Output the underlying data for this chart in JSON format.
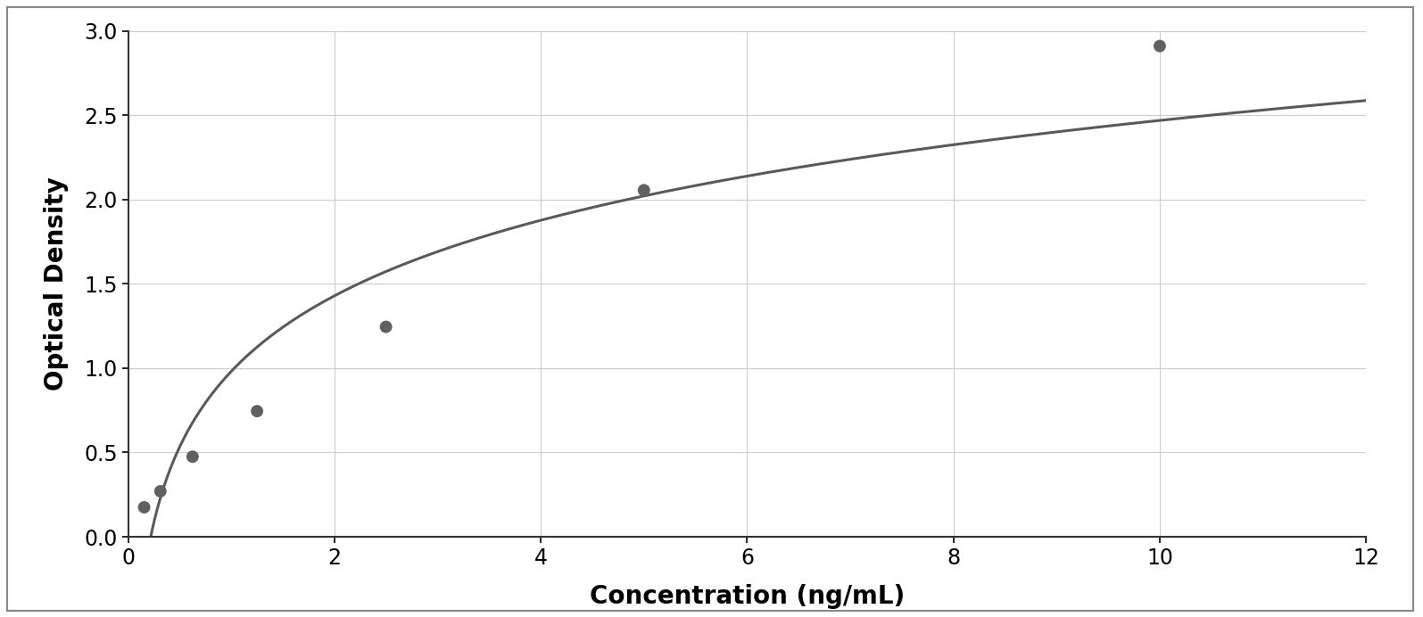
{
  "x_data": [
    0.156,
    0.313,
    0.625,
    1.25,
    2.5,
    5.0,
    10.0
  ],
  "y_data": [
    0.175,
    0.27,
    0.475,
    0.745,
    1.245,
    2.055,
    2.91
  ],
  "dot_color": "#606060",
  "line_color": "#595959",
  "xlabel": "Concentration (ng/mL)",
  "ylabel": "Optical Density",
  "xlim": [
    0,
    12
  ],
  "ylim": [
    0,
    3
  ],
  "xticks": [
    0,
    2,
    4,
    6,
    8,
    10,
    12
  ],
  "yticks": [
    0,
    0.5,
    1.0,
    1.5,
    2.0,
    2.5,
    3.0
  ],
  "xlabel_fontsize": 20,
  "ylabel_fontsize": 20,
  "tick_fontsize": 17,
  "dot_size": 100,
  "line_width": 2.2,
  "background_color": "#ffffff",
  "plot_bg_color": "#ffffff",
  "grid_color": "#cccccc",
  "spine_color": "#333333",
  "outer_border_color": "#888888",
  "outer_border_linewidth": 1.5
}
